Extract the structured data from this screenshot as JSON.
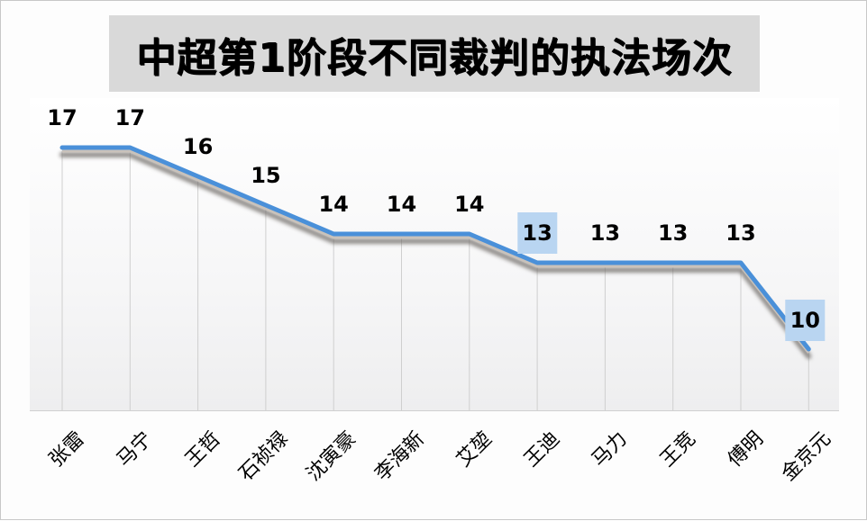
{
  "title": "中超第1阶段不同裁判的执法场次",
  "colors": {
    "line": "#4a90d9",
    "title_bg": "#d9d9d9",
    "highlight_label_bg": "#b9d5f1"
  },
  "chart_data": {
    "type": "line",
    "title": "中超第1阶段不同裁判的执法场次",
    "xlabel": "",
    "ylabel": "",
    "categories": [
      "张雷",
      "马宁",
      "王哲",
      "石祯禄",
      "沈寅豪",
      "李海新",
      "艾堃",
      "王迪",
      "马力",
      "王竞",
      "傅明",
      "金京元"
    ],
    "values": [
      17,
      17,
      16,
      15,
      14,
      14,
      14,
      13,
      13,
      13,
      13,
      10
    ],
    "data_labels": [
      "17",
      "17",
      "16",
      "15",
      "14",
      "14",
      "14",
      "13",
      "13",
      "13",
      "13",
      "10"
    ],
    "highlighted_labels": [
      "王迪",
      "金京元"
    ],
    "grid": "vertical category lines",
    "legend": "none",
    "y_axis_visible": false
  }
}
